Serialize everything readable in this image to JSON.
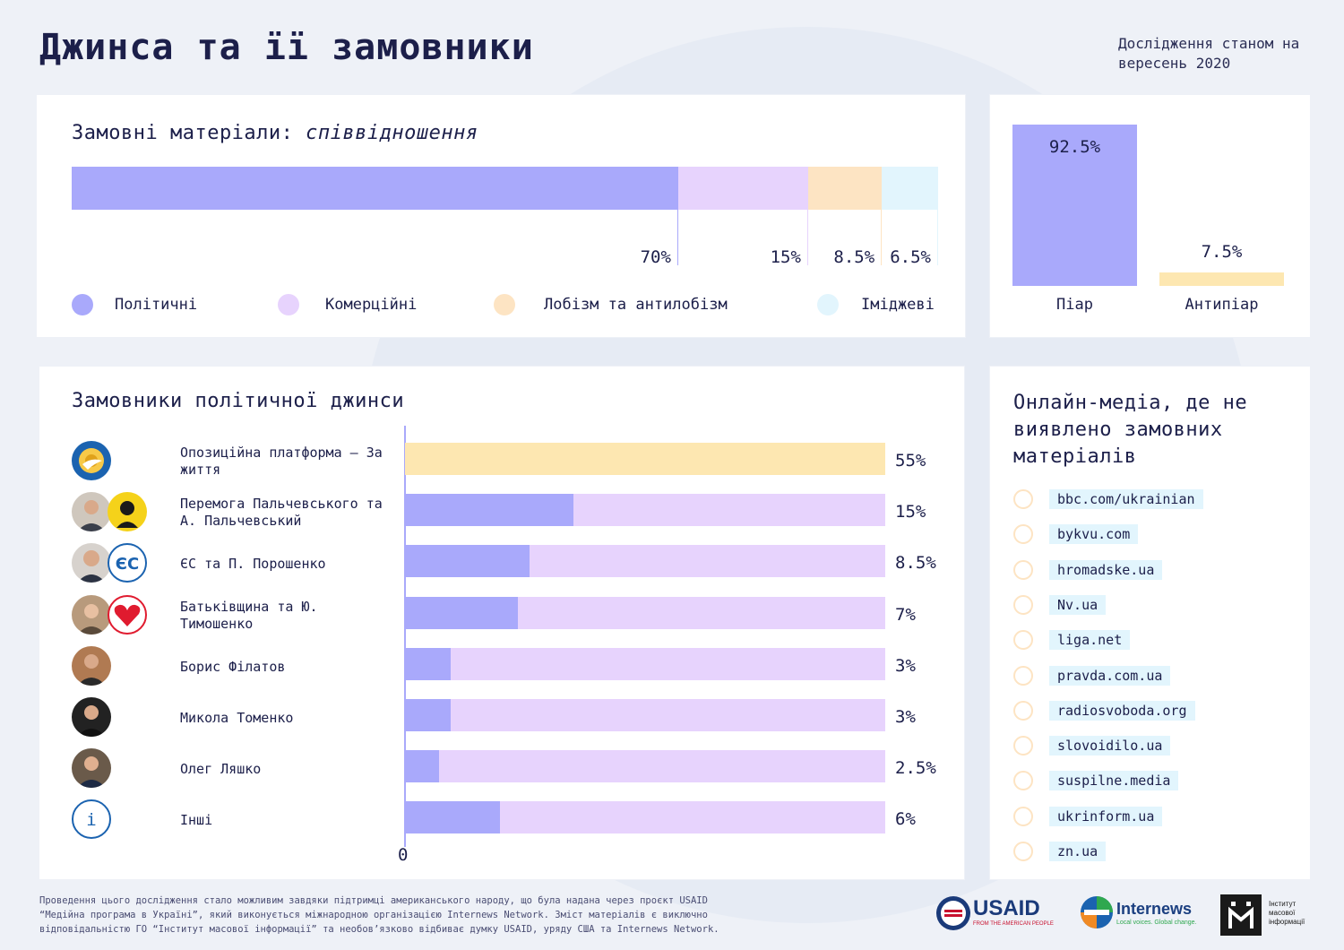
{
  "header": {
    "title": "Джинса та її замовники",
    "date_note": "Дослідження станом на вересень 2020"
  },
  "ratio": {
    "title_plain": "Замовні матеріали:",
    "title_italic": "співвідношення"
  },
  "piar": {},
  "customers": {
    "title": "Замовники політичної джинси",
    "axis_zero": "0"
  },
  "media": {
    "title": "Онлайн-медіа, де не виявлено замовних матеріалів",
    "items": [
      "bbc.com/ukrainian",
      "bykvu.com",
      "hromadske.ua",
      "Nv.ua",
      "liga.net",
      "pravda.com.ua",
      "radiosvoboda.org",
      "slovoidilo.ua",
      "suspilne.media",
      "ukrinform.ua",
      "zn.ua"
    ]
  },
  "footer": {
    "text": "Проведення цього дослідження стало можливим завдяки підтримці американського народу, що була надана через проєкт USAID “Медійна програма в Україні”, який виконується міжнародною організацією Internews Network. Зміст матеріалів є виключно відповідальністю ГО “Інститут масової інформації” та необов’язково відбиває думку USAID, уряду США та Internews Network.",
    "usaid": "USAID",
    "usaid_sub": "FROM THE AMERICAN PEOPLE",
    "internews": "Internews",
    "internews_sub": "Local voices. Global change.",
    "imi": "Інститут масової інформації"
  },
  "colors": {
    "political": "#a9a9fb",
    "commercial": "#e7d3fd",
    "lobbying": "#fde4c3",
    "image": "#e2f5fd",
    "piar": "#a9a9fb",
    "antipiar": "#fde7b1",
    "opzzh": "#fde7b1",
    "text": "#1c1f4a"
  },
  "chart_data": [
    {
      "type": "bar",
      "orientation": "stacked-horizontal",
      "categories": [
        "Політичні",
        "Комерційні",
        "Лобізм та антилобізм",
        "Іміджеві"
      ],
      "values": [
        70,
        15,
        8.5,
        6.5
      ],
      "value_labels": [
        "70%",
        "15%",
        "8.5%",
        "6.5%"
      ],
      "legend": "bottom",
      "unit": "%"
    },
    {
      "type": "bar",
      "categories": [
        "Піар",
        "Антипіар"
      ],
      "values": [
        92.5,
        7.5
      ],
      "value_labels": [
        "92.5%",
        "7.5%"
      ],
      "unit": "%"
    },
    {
      "type": "bar",
      "orientation": "horizontal",
      "xlim": [
        0,
        55
      ],
      "axis_zero_label": "0",
      "rows": [
        {
          "label": "Опозиційна платформа – За життя",
          "value": 55,
          "value_label": "55%",
          "fill_fraction": 1.0,
          "icon": "sunflower-bird-icon"
        },
        {
          "label": "Перемога Пальчевського та А. Пальчевський",
          "value": 15,
          "value_label": "15%",
          "fill_fraction": 0.35,
          "icon": "palchevsky-icon"
        },
        {
          "label": "ЄС та П. Порошенко",
          "value": 8.5,
          "value_label": "8.5%",
          "fill_fraction": 0.26,
          "icon": "es-icon"
        },
        {
          "label": "Батьківщина та Ю. Тимошенко",
          "value": 7,
          "value_label": "7%",
          "fill_fraction": 0.235,
          "icon": "heart-icon"
        },
        {
          "label": "Борис Філатов",
          "value": 3,
          "value_label": "3%",
          "fill_fraction": 0.095,
          "icon": "filatov-icon"
        },
        {
          "label": "Микола Томенко",
          "value": 3,
          "value_label": "3%",
          "fill_fraction": 0.095,
          "icon": "tomenko-icon"
        },
        {
          "label": "Олег Ляшко",
          "value": 2.5,
          "value_label": "2.5%",
          "fill_fraction": 0.07,
          "icon": "lyashko-icon"
        },
        {
          "label": "Інші",
          "value": 6,
          "value_label": "6%",
          "fill_fraction": 0.197,
          "icon": "info-icon"
        }
      ]
    }
  ]
}
